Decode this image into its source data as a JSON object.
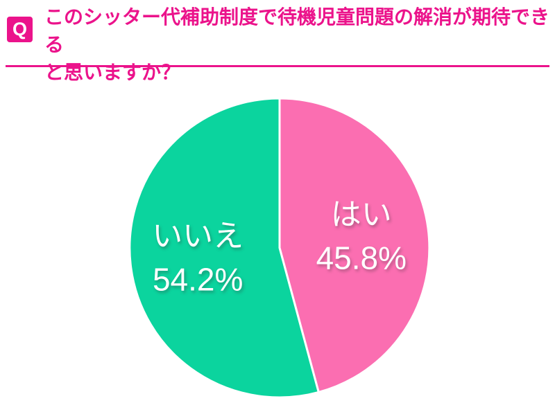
{
  "header": {
    "q_badge": "Q",
    "title_line1": "このシッター代補助制度で待機児童問題の解消が期待できる",
    "title_line2": "と思いますか？"
  },
  "colors": {
    "accent": "#EB138B",
    "slice_yes": "#FB6EB1",
    "slice_no": "#0BD49E",
    "label_text": "#FFFFFF",
    "background": "#FFFFFF"
  },
  "chart_data": {
    "type": "pie",
    "title": "このシッター代補助制度で待機児童問題の解消が期待できると思いますか？",
    "unit": "%",
    "start_angle": "top",
    "direction": "clockwise",
    "legend_position": "inside-slices",
    "slices": [
      {
        "key": "yes",
        "label": "はい",
        "value": 45.8,
        "display": "45.8%",
        "color": "#FB6EB1"
      },
      {
        "key": "no",
        "label": "いいえ",
        "value": 54.2,
        "display": "54.2%",
        "color": "#0BD49E"
      }
    ]
  }
}
